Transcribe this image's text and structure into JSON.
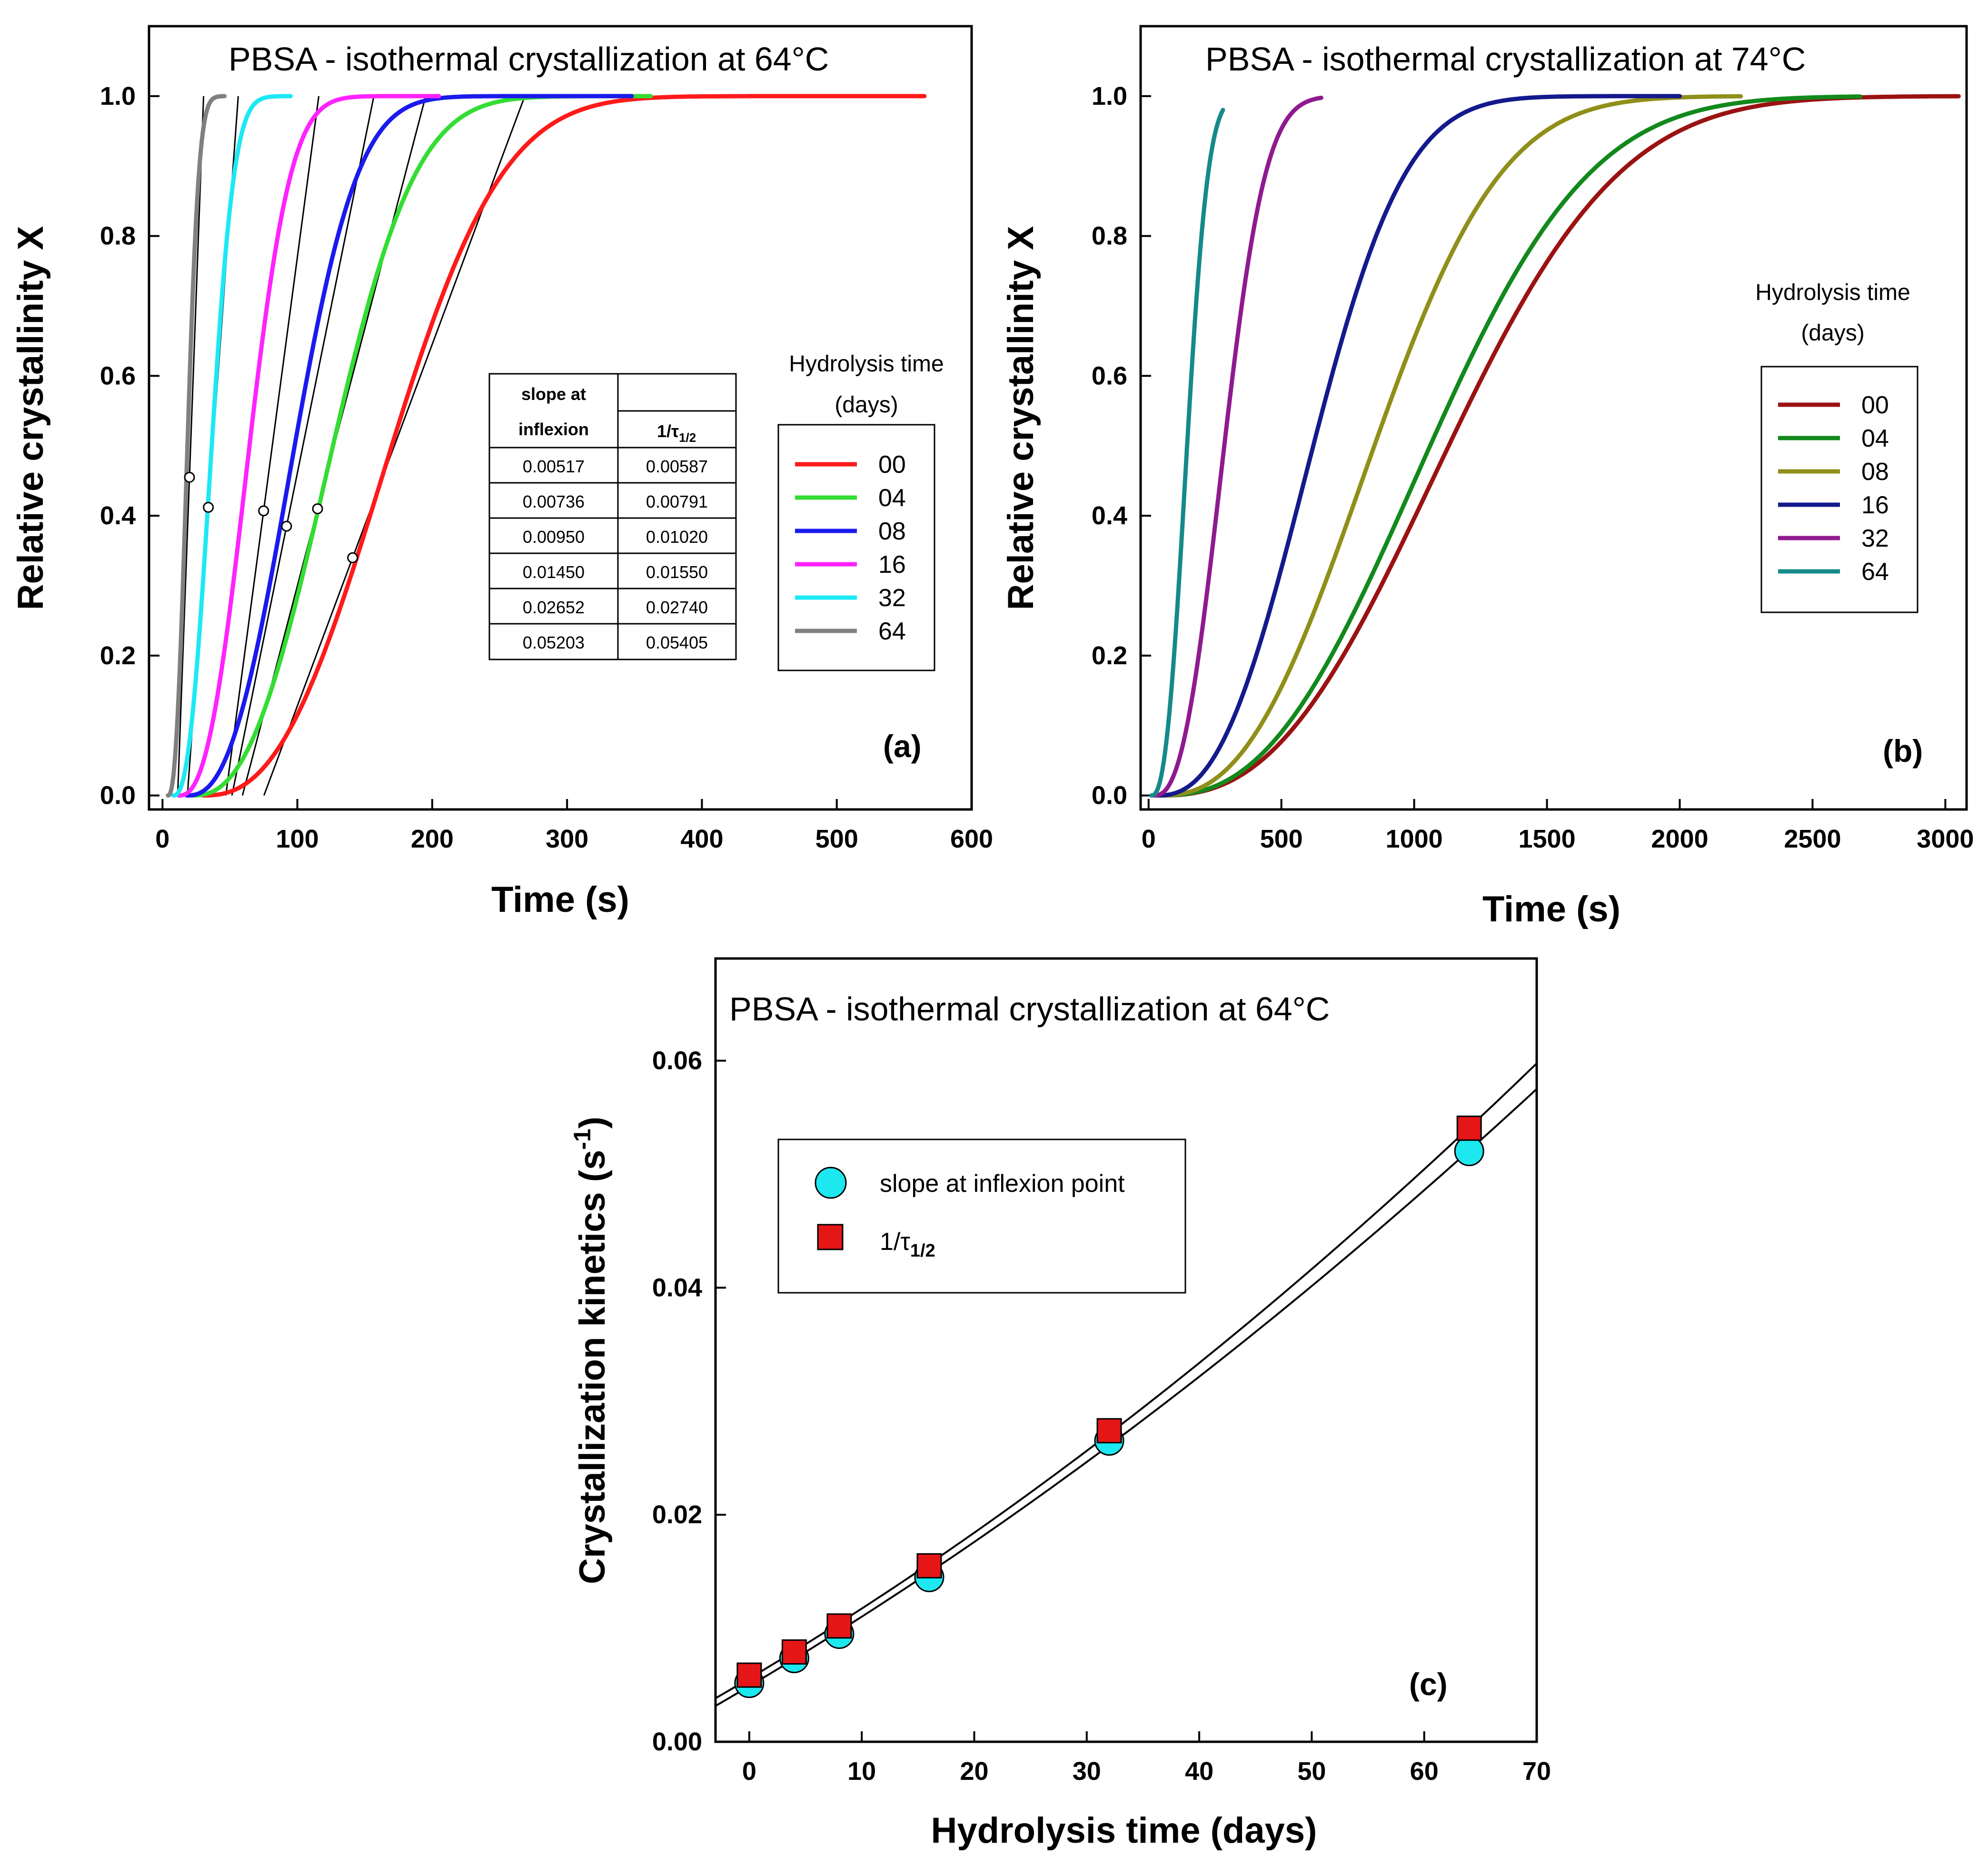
{
  "chart_data": [
    {
      "panel": "(a)",
      "type": "line",
      "title": "PBSA - isothermal crystallization at 64°C",
      "xlabel": "Time (s)",
      "ylabel": "Relative crystallinity X",
      "xlim": [
        -10,
        600
      ],
      "ylim": [
        -0.02,
        1.1
      ],
      "xticks": [
        0,
        100,
        200,
        300,
        400,
        500,
        600
      ],
      "yticks": [
        0.0,
        0.2,
        0.4,
        0.6,
        0.8,
        1.0
      ],
      "xtick_labels": [
        "0",
        "100",
        "200",
        "300",
        "400",
        "500",
        "600"
      ],
      "ytick_labels": [
        "0.0",
        "0.2",
        "0.4",
        "0.6",
        "0.8",
        "1.0"
      ],
      "legend_title_line1": "Hydrolysis time",
      "legend_title_line2": "(days)",
      "series": [
        {
          "name": "00",
          "color": "#ff1a1a",
          "t0": 30,
          "t_half": 170.0,
          "t_end": 565
        },
        {
          "name": "04",
          "color": "#33dd33",
          "t0": 22,
          "t_half": 126.4,
          "t_end": 362
        },
        {
          "name": "08",
          "color": "#1a1aee",
          "t0": 18,
          "t_half": 98.0,
          "t_end": 348
        },
        {
          "name": "16",
          "color": "#ff22ff",
          "t0": 12,
          "t_half": 64.5,
          "t_end": 205
        },
        {
          "name": "32",
          "color": "#1de8f5",
          "t0": 8,
          "t_half": 36.5,
          "t_end": 95
        },
        {
          "name": "64",
          "color": "#808080",
          "t0": 4,
          "t_half": 18.5,
          "t_end": 46
        }
      ],
      "tangents": [
        {
          "slope": 0.00517,
          "x": 141,
          "y": 0.34
        },
        {
          "slope": 0.00736,
          "x": 115,
          "y": 0.41
        },
        {
          "slope": 0.0095,
          "x": 92,
          "y": 0.385
        },
        {
          "slope": 0.0145,
          "x": 75,
          "y": 0.407
        },
        {
          "slope": 0.02652,
          "x": 34,
          "y": 0.412
        },
        {
          "slope": 0.05203,
          "x": 20,
          "y": 0.455
        }
      ],
      "table": {
        "header_col1_line1": "slope at",
        "header_col1_line2": "inflexion",
        "header_col2": "1/τ",
        "header_col2_sub": "1/2",
        "rows": [
          [
            "0.00517",
            "0.00587"
          ],
          [
            "0.00736",
            "0.00791"
          ],
          [
            "0.00950",
            "0.01020"
          ],
          [
            "0.01450",
            "0.01550"
          ],
          [
            "0.02652",
            "0.02740"
          ],
          [
            "0.05203",
            "0.05405"
          ]
        ]
      }
    },
    {
      "panel": "(b)",
      "type": "line",
      "title": "PBSA - isothermal crystallization at 74°C",
      "xlabel": "Time (s)",
      "ylabel": "Relative crystallinity X",
      "xlim": [
        -30,
        3080
      ],
      "ylim": [
        -0.02,
        1.1
      ],
      "xticks": [
        0,
        500,
        1000,
        1500,
        2000,
        2500,
        3000
      ],
      "yticks": [
        0.0,
        0.2,
        0.4,
        0.6,
        0.8,
        1.0
      ],
      "xtick_labels": [
        "0",
        "500",
        "1000",
        "1500",
        "2000",
        "2500",
        "3000"
      ],
      "ytick_labels": [
        "0.0",
        "0.2",
        "0.4",
        "0.6",
        "0.8",
        "1.0"
      ],
      "legend_title_line1": "Hydrolysis time",
      "legend_title_line2": "(days)",
      "series": [
        {
          "name": "00",
          "color": "#9b1212",
          "t0": 40,
          "t_half": 1130,
          "t_end": 3050
        },
        {
          "name": "04",
          "color": "#12891c",
          "t0": 40,
          "t_half": 1060,
          "t_end": 2680
        },
        {
          "name": "08",
          "color": "#8f8f1a",
          "t0": 40,
          "t_half": 850,
          "t_end": 2230
        },
        {
          "name": "16",
          "color": "#141a8c",
          "t0": 30,
          "t_half": 620,
          "t_end": 2000
        },
        {
          "name": "32",
          "color": "#8f1a8f",
          "t0": 20,
          "t_half": 285,
          "t_end": 650
        },
        {
          "name": "64",
          "color": "#148a8a",
          "t0": 10,
          "t_half": 145,
          "t_end": 280
        }
      ]
    },
    {
      "panel": "(c)",
      "type": "scatter",
      "title": "PBSA - isothermal crystallization at 64°C",
      "xlabel": "Hydrolysis time (days)",
      "ylabel": "Crystallization kinetics (s",
      "ylabel_sup": "-1",
      "ylabel_end": ")",
      "xlim": [
        -3,
        70
      ],
      "ylim": [
        0.0,
        0.069
      ],
      "xticks": [
        0,
        10,
        20,
        30,
        40,
        50,
        60,
        70
      ],
      "yticks": [
        0.0,
        0.02,
        0.04,
        0.06
      ],
      "xtick_labels": [
        "0",
        "10",
        "20",
        "30",
        "40",
        "50",
        "60",
        "70"
      ],
      "ytick_labels": [
        "0.00",
        "0.02",
        "0.04",
        "0.06"
      ],
      "x": [
        0,
        4,
        8,
        16,
        32,
        64
      ],
      "series": [
        {
          "name": "slope at inflexion point",
          "marker": "circle",
          "color": "#1de8f0",
          "values": [
            0.00517,
            0.00736,
            0.0095,
            0.0145,
            0.02652,
            0.05203
          ]
        },
        {
          "name": "1/τ",
          "name_sub": "1/2",
          "marker": "square",
          "color": "#e51616",
          "values": [
            0.00587,
            0.00791,
            0.0102,
            0.0155,
            0.0274,
            0.05405
          ]
        }
      ]
    }
  ]
}
